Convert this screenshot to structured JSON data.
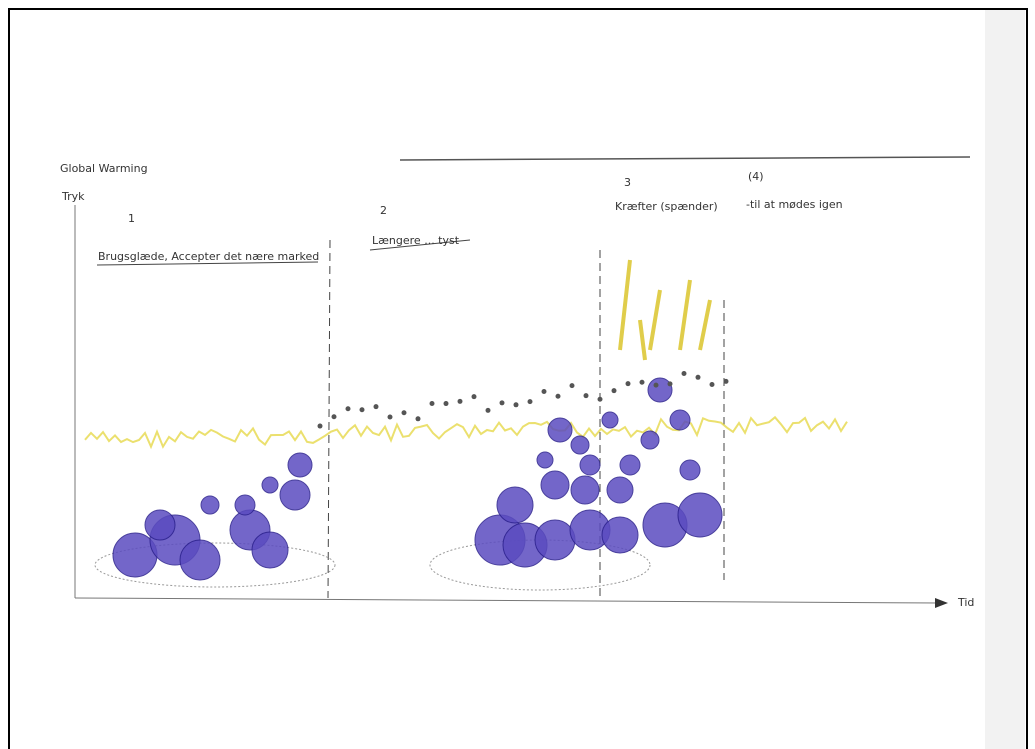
{
  "sketch": {
    "title": "Global Warming",
    "y_axis_label": "Tryk",
    "x_axis_label": "Tid",
    "sections": [
      {
        "number": "1",
        "caption": "Brugsglæde, Accepter det nære marked"
      },
      {
        "number": "2",
        "caption": "Længere ... tyst"
      },
      {
        "number": "3",
        "caption": "Kræfter (spænder)"
      },
      {
        "number": "(4)",
        "caption": "-til at mødes igen"
      }
    ]
  }
}
